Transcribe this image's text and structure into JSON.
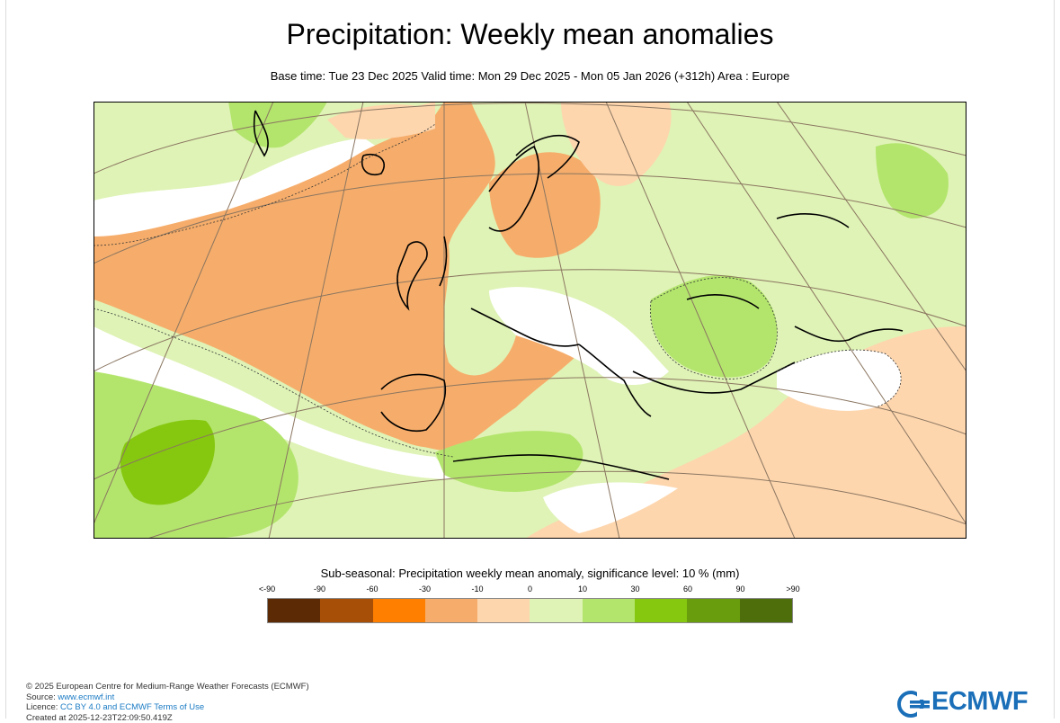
{
  "header": {
    "title": "Precipitation: Weekly mean anomalies",
    "subtitle": "Base time: Tue 23 Dec 2025 Valid time: Mon 29 Dec 2025 - Mon 05 Jan 2026 (+312h) Area : Europe"
  },
  "legend": {
    "title": "Sub-seasonal: Precipitation weekly mean anomaly, significance level: 10 % (mm)",
    "ticks": [
      "<-90",
      "-90",
      "-60",
      "-30",
      "-10",
      "0",
      "10",
      "30",
      "60",
      "90",
      ">90"
    ],
    "colors": [
      "#5c2a05",
      "#a84f07",
      "#ff7f00",
      "#f6ad6b",
      "#fdd6ae",
      "#dff3b6",
      "#b3e56d",
      "#86c80f",
      "#6a9d0d",
      "#4e6e0b"
    ]
  },
  "map_colors": {
    "ocean_dry": "#f6ad6b",
    "light_dry": "#fdd6ae",
    "light_wet": "#dff3b6",
    "wet": "#b3e56d",
    "very_wet": "#86c80f",
    "neutral": "#ffffff"
  },
  "footer": {
    "line1": "© 2025 European Centre for Medium-Range Weather Forecasts (ECMWF)",
    "source_label": "Source: ",
    "source_link": "www.ecmwf.int",
    "licence_label": "Licence: ",
    "licence_link": "CC BY 4.0 and ECMWF Terms of Use",
    "created": "Created at 2025-12-23T22:09:50.419Z"
  },
  "logo": {
    "text": "ECMWF"
  }
}
